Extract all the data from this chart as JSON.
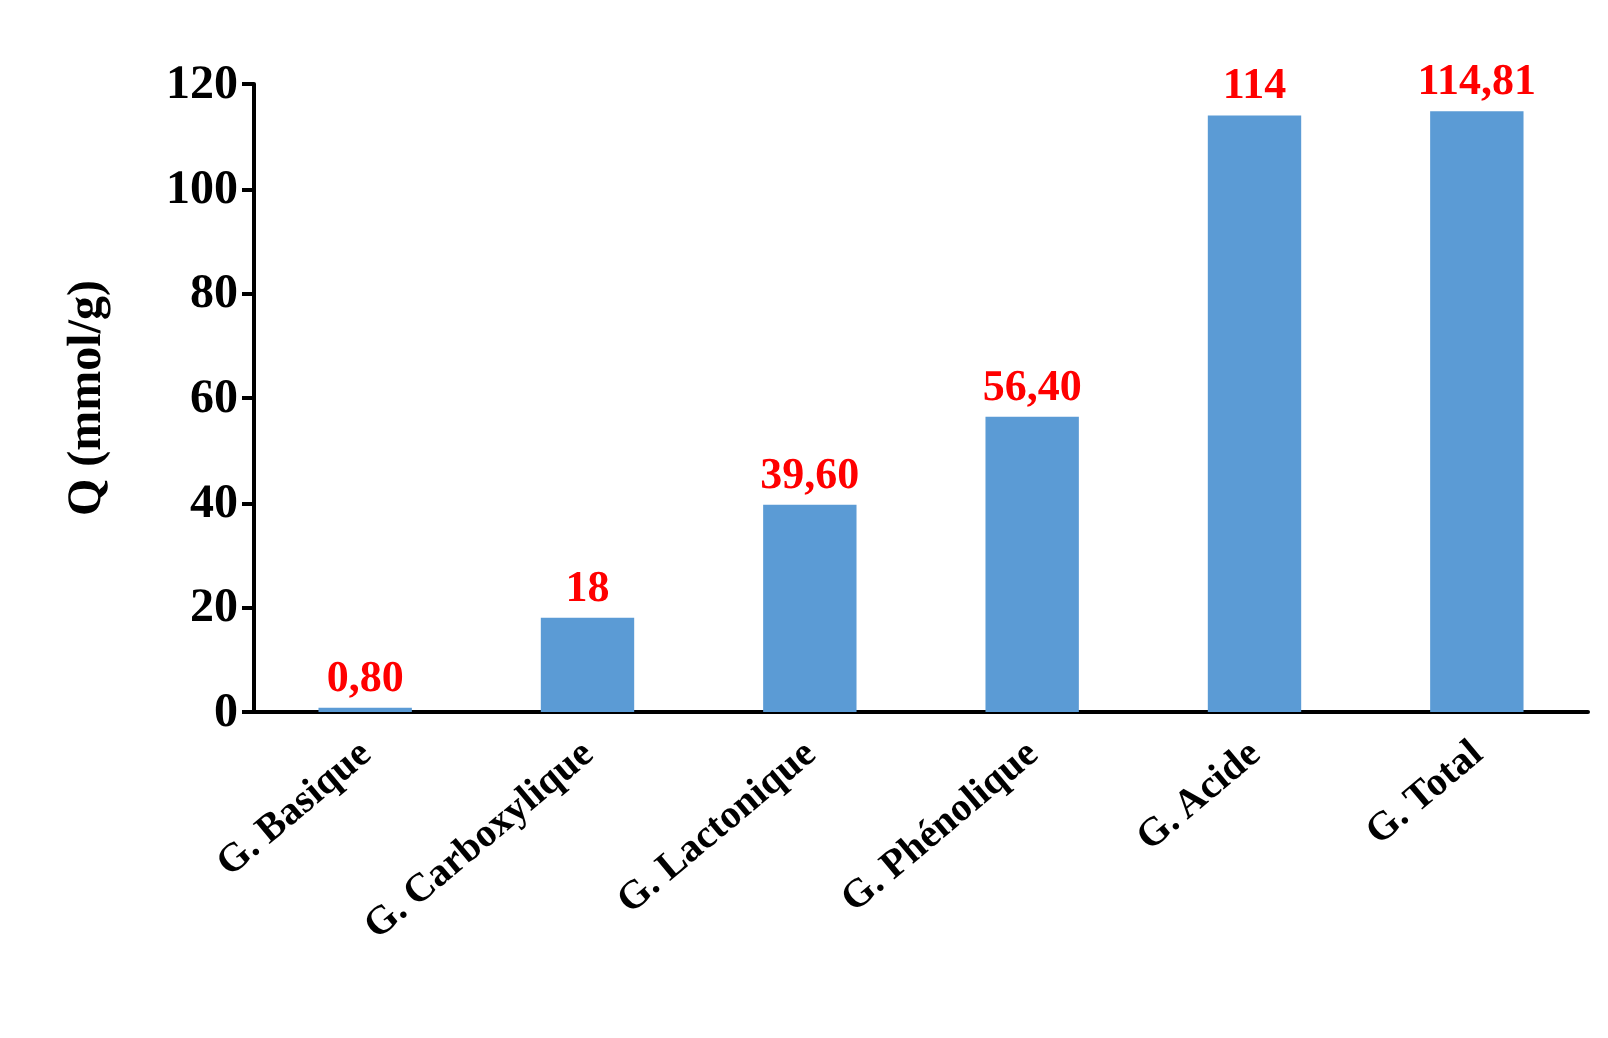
{
  "chart_data": {
    "type": "bar",
    "ylabel": "Q (mmol/g)",
    "categories": [
      "G. Basique",
      "G. Carboxylique",
      "G. Lactonique",
      "G. Phénolique",
      "G. Acide",
      "G. Total"
    ],
    "values": [
      0.8,
      18,
      39.6,
      56.4,
      114,
      114.81
    ],
    "value_labels": [
      "0,80",
      "18",
      "39,60",
      "56,40",
      "114",
      "114,81"
    ],
    "color": "#5b9bd5",
    "ylim": [
      0,
      120
    ],
    "yticks": [
      0,
      20,
      40,
      60,
      80,
      100,
      120
    ]
  }
}
